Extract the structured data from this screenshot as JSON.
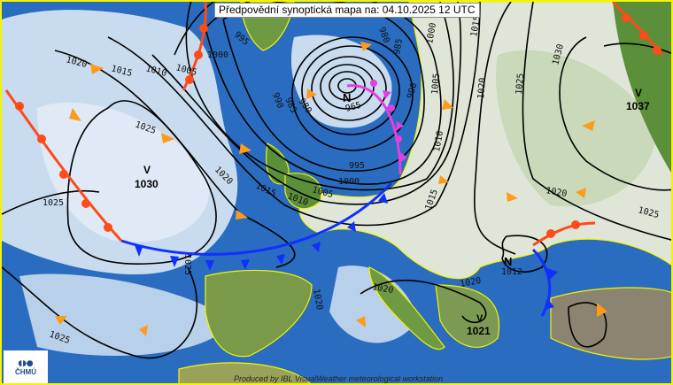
{
  "header": {
    "title": "Předpovědní synoptická mapa na: 04.10.2025 12 UTC"
  },
  "footer": {
    "credit": "Produced by IBL VisualWeather meteorological workstation"
  },
  "logo": {
    "text": "ČHMÚ"
  },
  "colors": {
    "ocean": "#2a6cc0",
    "cloud": "#c9dcef",
    "land": "#5b8f3a",
    "isobar": "#000000",
    "cold_front": "#1030ff",
    "warm_front": "#ff4a1a",
    "occluded_front": "#e040e0",
    "wind_arrow": "#ff9a1a",
    "coastline": "#f4f400"
  },
  "pressure_centers": [
    {
      "type": "N",
      "value": "965"
    },
    {
      "type": "V",
      "value": "1030"
    },
    {
      "type": "V",
      "value": "1037"
    },
    {
      "type": "N",
      "value": "1012"
    },
    {
      "type": "V",
      "value": "1021"
    }
  ],
  "isobar_labels": [
    "995",
    "1000",
    "1005",
    "1010",
    "1015",
    "1020",
    "1025",
    "1025",
    "1020",
    "1015",
    "1010",
    "1005",
    "1000",
    "995",
    "990",
    "985",
    "980",
    "965",
    "980",
    "985",
    "990",
    "1005",
    "1010",
    "1015",
    "1000",
    "1015",
    "1020",
    "1025",
    "1030",
    "1020",
    "1025",
    "1025",
    "1020",
    "1020",
    "1020",
    "1025"
  ]
}
